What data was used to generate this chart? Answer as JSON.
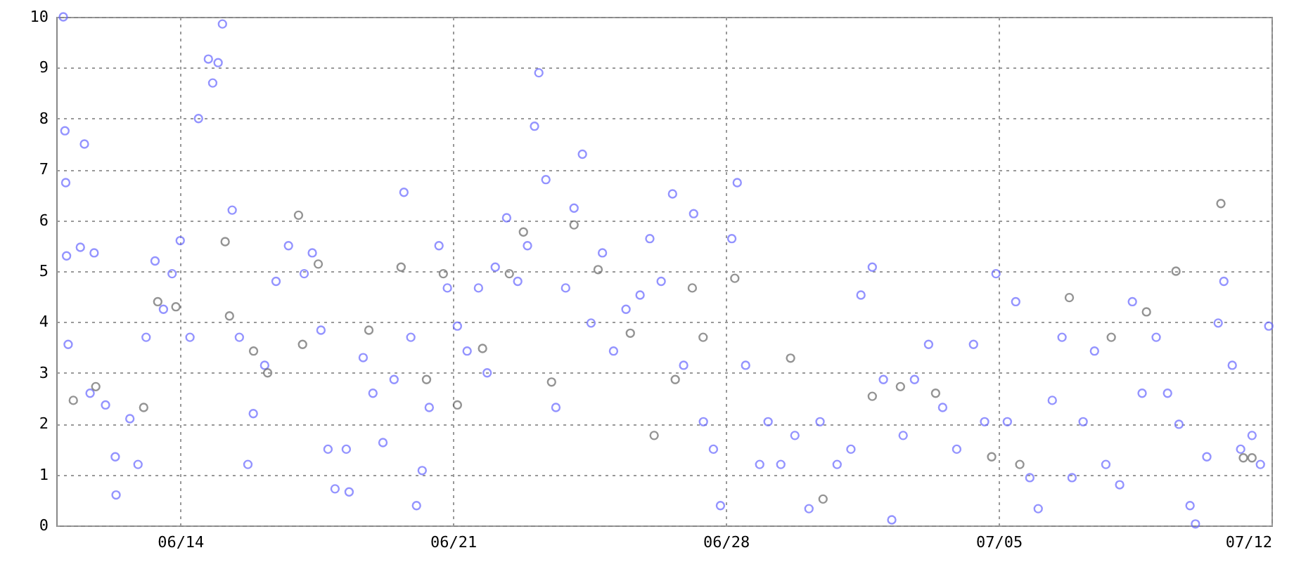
{
  "chart_data": {
    "type": "scatter",
    "xlim": [
      "--06-10T19:40",
      "--07-12"
    ],
    "ylim": [
      0,
      10
    ],
    "xticks": [
      {
        "value": "--06-14",
        "label": "06/14"
      },
      {
        "value": "--06-21",
        "label": "06/21"
      },
      {
        "value": "--06-28",
        "label": "06/28"
      },
      {
        "value": "--07-05",
        "label": "07/05"
      },
      {
        "value": "--07-12",
        "label": "07/12"
      }
    ],
    "yticks": [
      0,
      1,
      2,
      3,
      4,
      5,
      6,
      7,
      8,
      9,
      10
    ],
    "grid": true,
    "marker": "circle",
    "series": [
      {
        "color": "#6666ff",
        "x": [
          "--06-11T00:00",
          "--06-11T01:00",
          "--06-11T01:30",
          "--06-11T02:00",
          "--06-11T03:00",
          "--06-11T10:30",
          "--06-11T13:00",
          "--06-11T16:30",
          "--06-11T19:00",
          "--06-12T02:00",
          "--06-12T08:00",
          "--06-12T08:30",
          "--06-12T17:00",
          "--06-12T22:00",
          "--06-13T03:00",
          "--06-13T08:30",
          "--06-13T13:40",
          "--06-13T19:00",
          "--06-14T00:00",
          "--06-14T06:00",
          "--06-14T11:15",
          "--06-14T17:20",
          "--06-14T20:00",
          "--06-14T23:20",
          "--06-15T02:00",
          "--06-15T08:00",
          "--06-15T12:25",
          "--06-15T17:40",
          "--06-15T21:00",
          "--06-16T04:00",
          "--06-16T11:00",
          "--06-16T18:40",
          "--06-17T04:20",
          "--06-17T09:20",
          "--06-17T14:40",
          "--06-17T19:00",
          "--06-17T23:20",
          "--06-18T06:15",
          "--06-18T08:00",
          "--06-18T16:40",
          "--06-18T22:40",
          "--06-19T04:50",
          "--06-19T11:40",
          "--06-19T17:45",
          "--06-19T22:00",
          "--06-20T01:30",
          "--06-20T05:00",
          "--06-20T09:20",
          "--06-20T15:20",
          "--06-20T20:30",
          "--06-21T02:40",
          "--06-21T08:40",
          "--06-21T15:40",
          "--06-21T21:00",
          "--06-22T02:00",
          "--06-22T09:00",
          "--06-22T15:50",
          "--06-22T21:50",
          "--06-23T02:10",
          "--06-23T04:50",
          "--06-23T09:10",
          "--06-23T15:20",
          "--06-23T21:20",
          "--06-24T02:30",
          "--06-24T07:40",
          "--06-24T13:00",
          "--06-24T20:00",
          "--06-25T02:50",
          "--06-25T10:30",
          "--06-25T19:10",
          "--06-26T01:10",
          "--06-26T08:10",
          "--06-26T15:10",
          "--06-26T22:00",
          "--06-27T04:10",
          "--06-27T10:10",
          "--06-27T16:20",
          "--06-27T20:40",
          "--06-28T03:40",
          "--06-28T07:00",
          "--06-28T12:10",
          "--06-28T20:50",
          "--06-29T02:00",
          "--06-29T09:50",
          "--06-29T18:30",
          "--06-30T03:10",
          "--06-30T10:00",
          "--06-30T20:30",
          "--07-01T05:00",
          "--07-01T11:10",
          "--07-01T18:10",
          "--07-02T01:00",
          "--07-02T06:10",
          "--07-02T13:10",
          "--07-02T20:10",
          "--07-03T04:50",
          "--07-03T13:30",
          "--07-03T22:10",
          "--07-04T08:30",
          "--07-04T15:20",
          "--07-04T22:20",
          "--07-05T05:20",
          "--07-05T10:30",
          "--07-05T19:10",
          "--07-06T00:20",
          "--07-06T09:00",
          "--07-06T15:00",
          "--07-06T21:10",
          "--07-07T04:00",
          "--07-07T11:00",
          "--07-07T18:00",
          "--07-08T02:30",
          "--07-08T10:20",
          "--07-08T16:20",
          "--07-09T01:00",
          "--07-09T08:00",
          "--07-09T15:00",
          "--07-09T21:50",
          "--07-10T01:10",
          "--07-10T08:10",
          "--07-10T15:10",
          "--07-10T18:40",
          "--07-10T23:50",
          "--07-11T05:00",
          "--07-11T12:00",
          "--07-11T17:10",
          "--07-11T22:20"
        ],
        "values": [
          10.0,
          7.76,
          6.74,
          5.3,
          3.56,
          5.47,
          7.5,
          2.6,
          5.36,
          2.37,
          1.35,
          0.6,
          2.1,
          1.2,
          3.7,
          5.2,
          4.25,
          4.95,
          5.6,
          3.7,
          8.0,
          9.17,
          8.7,
          9.1,
          9.86,
          6.2,
          3.7,
          1.2,
          2.2,
          3.15,
          4.8,
          5.5,
          4.95,
          5.36,
          3.84,
          1.5,
          0.72,
          1.5,
          0.66,
          3.3,
          2.6,
          1.63,
          2.87,
          6.55,
          3.7,
          0.39,
          1.08,
          2.32,
          5.5,
          4.67,
          3.92,
          3.43,
          4.67,
          3.0,
          5.08,
          6.05,
          4.8,
          5.5,
          7.85,
          8.9,
          6.8,
          2.32,
          4.67,
          6.24,
          7.3,
          3.98,
          5.36,
          3.43,
          4.25,
          4.53,
          5.64,
          4.8,
          6.52,
          3.15,
          6.13,
          2.04,
          1.5,
          0.39,
          5.64,
          6.74,
          3.15,
          1.2,
          2.04,
          1.2,
          1.77,
          0.33,
          2.04,
          1.2,
          1.5,
          4.53,
          5.08,
          2.87,
          0.11,
          1.77,
          2.87,
          3.56,
          2.32,
          1.5,
          3.56,
          2.04,
          4.95,
          2.04,
          4.4,
          0.94,
          0.33,
          2.46,
          3.7,
          0.94,
          2.04,
          3.43,
          1.2,
          0.8,
          4.4,
          2.6,
          3.7,
          2.6,
          1.99,
          0.39,
          0.03,
          1.35,
          3.98,
          4.8,
          3.15,
          1.5,
          1.77,
          1.2,
          3.92
        ]
      },
      {
        "color": "#666666",
        "x": [
          "--06-11T06:10",
          "--06-11T20:00",
          "--06-13T01:30",
          "--06-13T10:10",
          "--06-13T21:20",
          "--06-15T03:40",
          "--06-15T06:20",
          "--06-15T21:10",
          "--06-16T05:50",
          "--06-17T00:50",
          "--06-17T03:20",
          "--06-17T13:00",
          "--06-18T20:10",
          "--06-19T16:00",
          "--06-20T07:40",
          "--06-20T18:00",
          "--06-21T02:40",
          "--06-21T18:10",
          "--06-22T10:40",
          "--06-22T19:20",
          "--06-23T12:40",
          "--06-24T02:30",
          "--06-24T17:20",
          "--06-25T13:10",
          "--06-26T03:50",
          "--06-26T16:50",
          "--06-27T03:20",
          "--06-27T10:00",
          "--06-28T05:30",
          "--06-29T15:50",
          "--06-30T11:50",
          "--07-01T18:10",
          "--07-02T11:30",
          "--07-03T09:10",
          "--07-04T19:40",
          "--07-05T13:00",
          "--07-06T19:30",
          "--07-07T21:20",
          "--07-08T19:00",
          "--07-09T13:10",
          "--07-10T16:50",
          "--07-11T06:40",
          "--07-11T12:00"
        ],
        "values": [
          2.46,
          2.73,
          2.32,
          4.4,
          4.3,
          5.58,
          4.12,
          3.43,
          3.0,
          6.1,
          3.56,
          5.14,
          3.84,
          5.08,
          2.87,
          4.95,
          2.37,
          3.48,
          4.95,
          5.77,
          2.82,
          5.91,
          5.03,
          3.78,
          1.77,
          2.87,
          4.67,
          3.7,
          4.86,
          3.29,
          0.52,
          2.54,
          2.73,
          2.6,
          1.35,
          1.2,
          4.48,
          3.7,
          4.2,
          5.0,
          6.33,
          1.33,
          1.33
        ]
      }
    ]
  }
}
